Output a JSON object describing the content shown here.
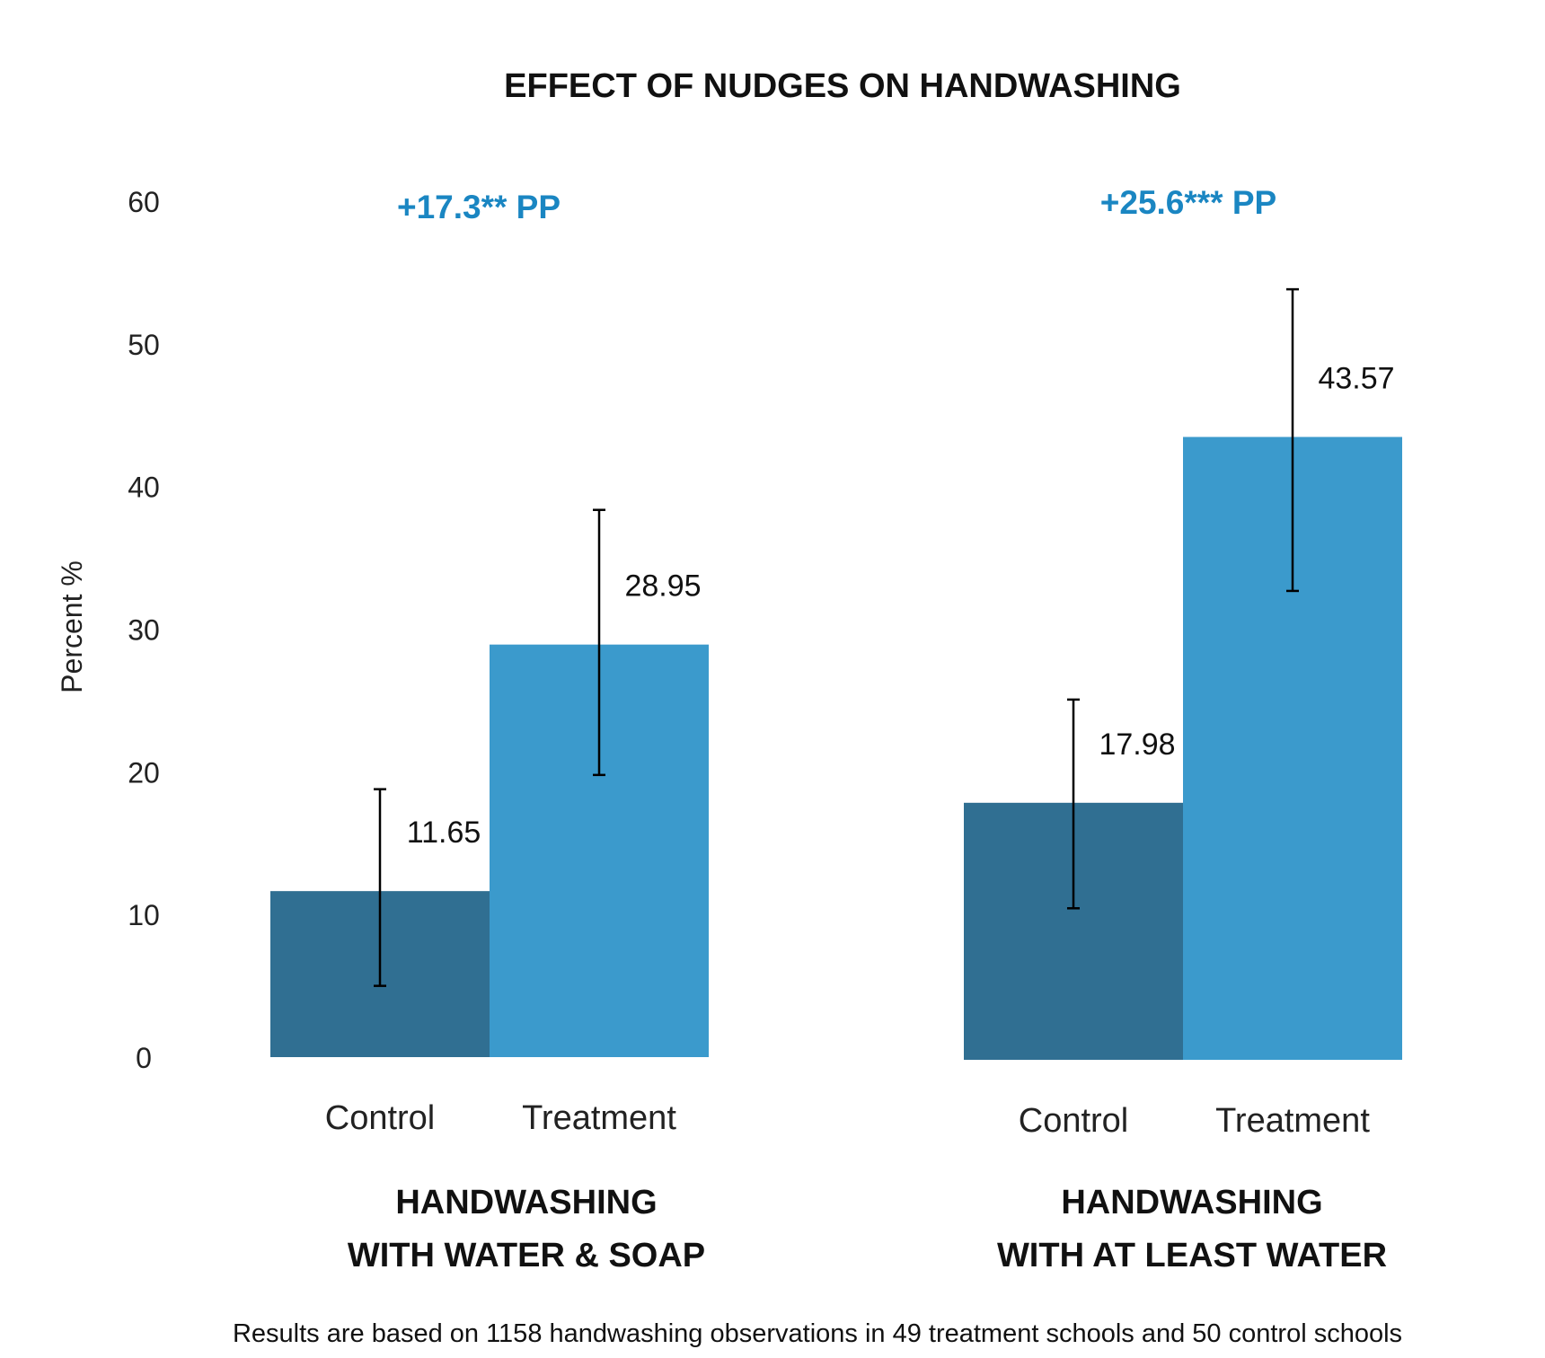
{
  "chart_data": {
    "type": "bar",
    "title": "EFFECT OF NUDGES ON HANDWASHING",
    "ylabel": "Percent %",
    "ylim": [
      0,
      60
    ],
    "yticks": [
      "0",
      "10",
      "20",
      "30",
      "40",
      "50",
      "60"
    ],
    "grid": false,
    "footnote": "Results are based on 1158 handwashing observations in 49 treatment schools and 50 control schools",
    "colors": {
      "control": "#306f92",
      "treatment": "#3b9acc",
      "effect": "#1a86c2",
      "error_bar": "#000000"
    },
    "groups": [
      {
        "label_lines": [
          "HANDWASHING",
          "WITH WATER & SOAP"
        ],
        "effect_label": "+17.3** PP",
        "bars": [
          {
            "category": "Control",
            "value": 11.65,
            "value_label": "11.65",
            "error_low": 5.0,
            "error_high": 18.8
          },
          {
            "category": "Treatment",
            "value": 28.95,
            "value_label": "28.95",
            "error_low": 19.8,
            "error_high": 38.4
          }
        ]
      },
      {
        "label_lines": [
          "HANDWASHING",
          "WITH AT LEAST WATER"
        ],
        "effect_label": "+25.6*** PP",
        "bars": [
          {
            "category": "Control",
            "value": 17.98,
            "value_label": "17.98",
            "error_low": 10.6,
            "error_high": 25.2
          },
          {
            "category": "Treatment",
            "value": 43.57,
            "value_label": "43.57",
            "error_low": 32.8,
            "error_high": 53.9
          }
        ]
      }
    ]
  }
}
